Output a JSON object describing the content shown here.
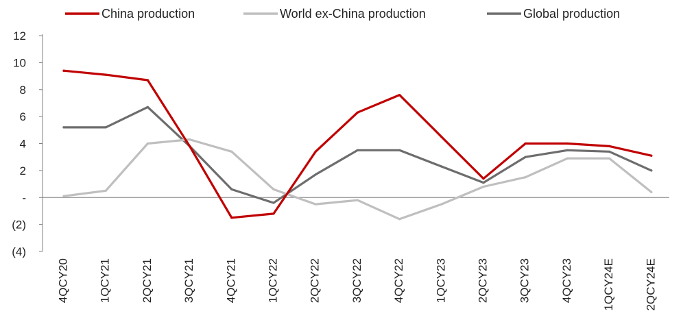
{
  "chart_data": {
    "type": "line",
    "title": "",
    "xlabel": "",
    "ylabel": "",
    "categories": [
      "4QCY20",
      "1QCY21",
      "2QCY21",
      "3QCY21",
      "4QCY21",
      "1QCY22",
      "2QCY22",
      "3QCY22",
      "4QCY22",
      "1QCY23",
      "2QCY23",
      "3QCY23",
      "4QCY23",
      "1QCY24E",
      "2QCY24E"
    ],
    "y_ticks": [
      12,
      10,
      8,
      6,
      4,
      2,
      0,
      -2,
      -4
    ],
    "y_tick_labels": [
      "12",
      "10",
      "8",
      "6",
      "4",
      "2",
      "-",
      "(2)",
      "(4)"
    ],
    "ylim": [
      -4,
      12
    ],
    "grid": false,
    "legend_position": "top",
    "series": [
      {
        "name": "China production",
        "color": "#c00000",
        "values": [
          9.4,
          9.1,
          8.7,
          3.8,
          -1.5,
          -1.2,
          3.4,
          6.3,
          7.6,
          4.5,
          1.4,
          4.0,
          4.0,
          3.8,
          3.1
        ]
      },
      {
        "name": "World ex-China production",
        "color": "#bfbfbf",
        "values": [
          0.1,
          0.5,
          4.0,
          4.3,
          3.4,
          0.6,
          -0.5,
          -0.2,
          -1.6,
          -0.5,
          0.8,
          1.5,
          2.9,
          2.9,
          0.4
        ]
      },
      {
        "name": "Global production",
        "color": "#6d6d6d",
        "values": [
          5.2,
          5.2,
          6.7,
          3.8,
          0.6,
          -0.4,
          1.7,
          3.5,
          3.5,
          2.3,
          1.1,
          3.0,
          3.5,
          3.4,
          2.0
        ]
      }
    ]
  }
}
